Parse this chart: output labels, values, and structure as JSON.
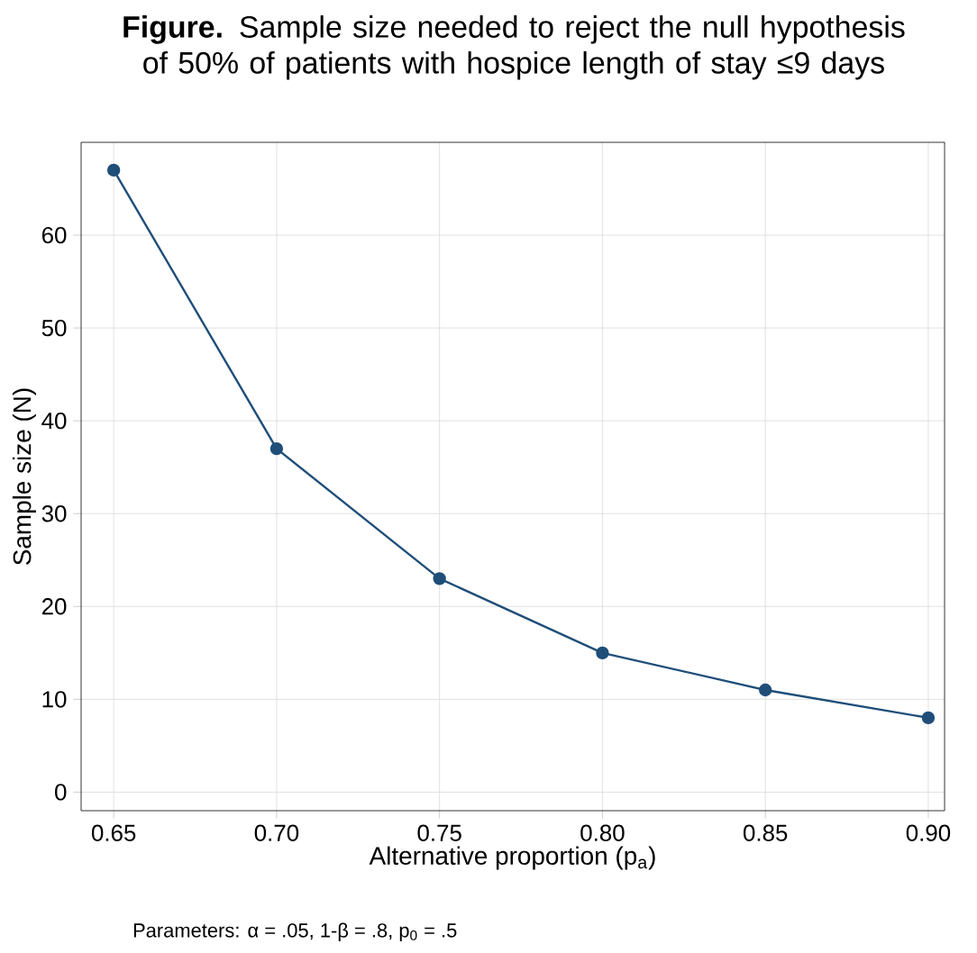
{
  "chart_data": {
    "type": "line",
    "title": "**Figure.** Sample size needed to reject the null hypothesis of 50% of patients with hospice length of stay ≤9 days",
    "xlabel": "Alternative proportion (p$_{a}$)",
    "ylabel": "Sample size (N)",
    "x": [
      0.65,
      0.7,
      0.75,
      0.8,
      0.85,
      0.9
    ],
    "values": [
      67,
      37,
      23,
      15,
      11,
      8
    ],
    "color": "#1f4e79",
    "marker": "circle",
    "line_style": "solid",
    "grid": true,
    "xlim": [
      0.64,
      0.905
    ],
    "ylim": [
      -2,
      70
    ],
    "xticks": [
      0.65,
      {
        "value": 0.7,
        "label": "0.70"
      },
      0.75,
      {
        "value": 0.8,
        "label": "0.80"
      },
      0.85,
      {
        "value": 0.9,
        "label": "0.90"
      }
    ],
    "yticks": [
      0,
      10,
      20,
      30,
      40,
      50,
      60
    ],
    "annotations": [
      "Parameters: α = .05, 1-β = .8, p$_{0}$ = .5"
    ]
  }
}
